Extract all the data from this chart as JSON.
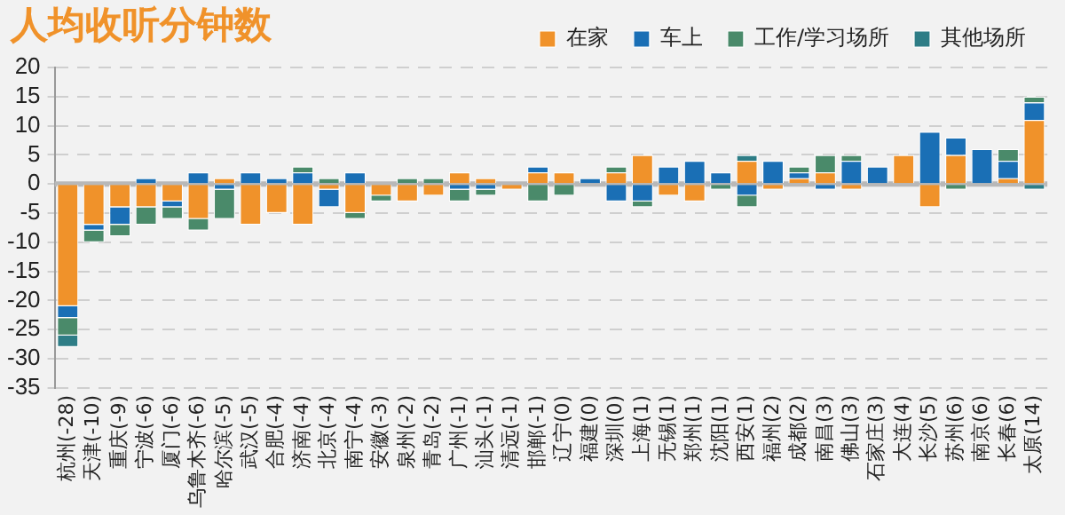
{
  "chart_data": {
    "type": "bar",
    "title": "人均收听分钟数",
    "stacked": true,
    "legend": "top right",
    "grid": "y",
    "categories": [
      "杭州(-28)",
      "天津(-10)",
      "重庆(-9)",
      "宁波(-6)",
      "厦门(-6)",
      "乌鲁木齐(-6)",
      "哈尔滨(-5)",
      "武汉(-5)",
      "合肥(-4)",
      "济南(-4)",
      "北京(-4)",
      "南宁(-4)",
      "安徽(-3)",
      "泉州(-2)",
      "青岛(-2)",
      "广州(-1)",
      "汕头(-1)",
      "清远(-1)",
      "邯郸(-1)",
      "辽宁(0)",
      "福建(0)",
      "深圳(0)",
      "上海(1)",
      "无锡(1)",
      "郑州(1)",
      "沈阳(1)",
      "西安(1)",
      "福州(2)",
      "成都(2)",
      "南昌(3)",
      "佛山(3)",
      "石家庄(3)",
      "大连(4)",
      "长沙(5)",
      "苏州(6)",
      "南京(6)",
      "长春(6)",
      "太原(14)"
    ],
    "series": [
      {
        "name": "在家",
        "color": "#f0922a",
        "values": [
          -21,
          -7,
          -4,
          -4,
          -3,
          -6,
          1,
          -7,
          -5,
          -7,
          -1,
          -5,
          -2,
          -3,
          -2,
          2,
          1,
          -1,
          2,
          2,
          0,
          2,
          5,
          -2,
          -3,
          0,
          4,
          -1,
          1,
          2,
          -1,
          0,
          5,
          -4,
          5,
          0,
          1,
          11
        ]
      },
      {
        "name": "车上",
        "color": "#1a6fb5",
        "values": [
          -2,
          -1,
          -3,
          1,
          -1,
          2,
          -1,
          2,
          1,
          2,
          -3,
          2,
          0,
          0,
          0,
          -1,
          -1,
          0,
          1,
          0,
          1,
          -3,
          -3,
          3,
          4,
          2,
          -2,
          4,
          1,
          -1,
          4,
          3,
          0,
          9,
          3,
          6,
          3,
          3
        ]
      },
      {
        "name": "工作/学习场所",
        "color": "#4a8a6a",
        "values": [
          -3,
          -2,
          -2,
          -3,
          -2,
          -2,
          -5,
          0,
          0,
          1,
          1,
          -1,
          -1,
          1,
          1,
          -2,
          -1,
          0,
          -3,
          -2,
          0,
          1,
          -1,
          0,
          0,
          -1,
          -2,
          0,
          1,
          3,
          1,
          0,
          0,
          0,
          -1,
          0,
          2,
          1
        ]
      },
      {
        "name": "其他场所",
        "color": "#2e7d86",
        "values": [
          -2,
          0,
          0,
          0,
          0,
          0,
          0,
          0,
          0,
          0,
          0,
          0,
          0,
          0,
          0,
          0,
          0,
          0,
          0,
          0,
          0,
          0,
          0,
          0,
          0,
          0,
          1,
          0,
          0,
          0,
          0,
          0,
          0,
          0,
          0,
          0,
          0,
          -1
        ]
      }
    ],
    "ref_lines": [
      {
        "axis": "y",
        "value": 0,
        "color": "#b8b8b8"
      }
    ],
    "ylim": [
      -35,
      20
    ],
    "yticks": [
      -35,
      -30,
      -25,
      -20,
      -15,
      -10,
      -5,
      0,
      5,
      10,
      15,
      20
    ]
  }
}
